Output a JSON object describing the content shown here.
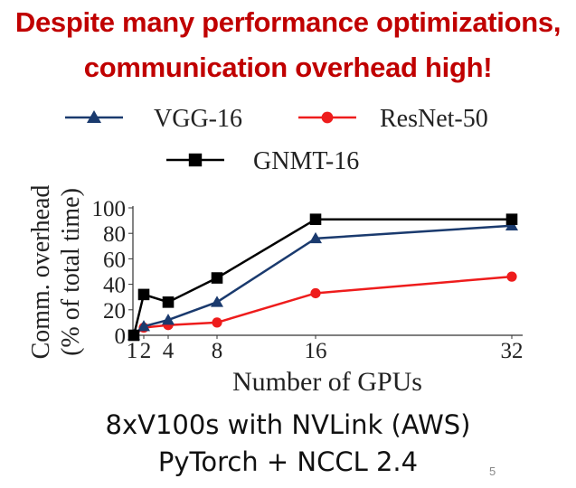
{
  "slide": {
    "title_line_1": "Despite many performance optimizations,",
    "title_line_2": "communication overhead high!",
    "caption_line_1": "8xV100s with NVLink (AWS)",
    "caption_line_2": "PyTorch + NCCL 2.4",
    "slide_number": "5"
  },
  "chart_data": {
    "type": "line",
    "xlabel": "Number of GPUs",
    "ylabel_line_1": "Comm. overhead",
    "ylabel_line_2": "(% of total time)",
    "xticks": [
      "1",
      "2",
      "4",
      "8",
      "16",
      "32"
    ],
    "yticks": [
      "0",
      "20",
      "40",
      "60",
      "80",
      "100"
    ],
    "ylim": [
      0,
      100
    ],
    "grid": false,
    "legend_placement": "top",
    "series": [
      {
        "name": "VGG-16",
        "color": "#1a3a6e",
        "marker": "triangle",
        "x": [
          1,
          2,
          4,
          8,
          16,
          32
        ],
        "values": [
          0,
          7,
          12,
          26,
          76,
          86
        ]
      },
      {
        "name": "ResNet-50",
        "color": "#ee1c1c",
        "marker": "circle",
        "x": [
          1,
          2,
          4,
          8,
          16,
          32
        ],
        "values": [
          0,
          6,
          8,
          10,
          33,
          46
        ]
      },
      {
        "name": "GNMT-16",
        "color": "#000000",
        "marker": "square",
        "x": [
          1,
          2,
          4,
          8,
          16,
          32
        ],
        "values": [
          0,
          32,
          26,
          45,
          91,
          91
        ]
      }
    ]
  }
}
